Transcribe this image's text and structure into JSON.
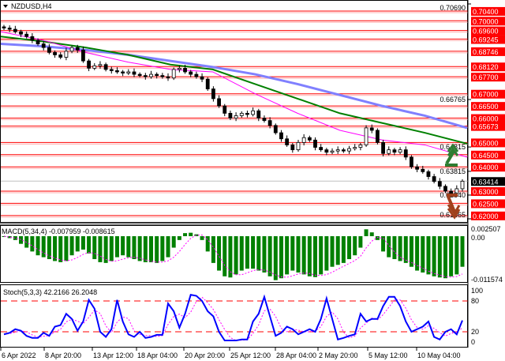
{
  "chart_data": [
    {
      "type": "candlestick",
      "title": "NZDUSD,H4",
      "symbol": "NZDUSD",
      "timeframe": "H4",
      "ylim": [
        0.61865,
        0.7069
      ],
      "axis_ticks": [
        "0.70690",
        "0.66765",
        "0.64815",
        "0.63815",
        "0.62840",
        "0.61865"
      ],
      "level_labels": [
        "0.70400",
        "0.70000",
        "0.69600",
        "0.69245",
        "0.68746",
        "0.68120",
        "0.67700",
        "0.67000",
        "0.66500",
        "0.66000",
        "0.65673",
        "0.65000",
        "0.64500",
        "0.64000",
        "0.63000",
        "0.62500",
        "0.62000"
      ],
      "current_price": "0.63414",
      "closes": [
        0.697,
        0.6965,
        0.6955,
        0.6945,
        0.6935,
        0.692,
        0.6905,
        0.689,
        0.687,
        0.686,
        0.685,
        0.6875,
        0.689,
        0.688,
        0.6835,
        0.6805,
        0.6815,
        0.682,
        0.68,
        0.6795,
        0.679,
        0.6785,
        0.679,
        0.678,
        0.6775,
        0.677,
        0.678,
        0.6775,
        0.677,
        0.6765,
        0.68,
        0.6805,
        0.679,
        0.678,
        0.677,
        0.676,
        0.672,
        0.668,
        0.665,
        0.662,
        0.66,
        0.661,
        0.662,
        0.6615,
        0.663,
        0.66,
        0.659,
        0.657,
        0.654,
        0.6515,
        0.649,
        0.647,
        0.65,
        0.652,
        0.651,
        0.648,
        0.647,
        0.646,
        0.6465,
        0.647,
        0.6465,
        0.6475,
        0.648,
        0.649,
        0.656,
        0.655,
        0.65,
        0.6455,
        0.647,
        0.646,
        0.647,
        0.644,
        0.64,
        0.639,
        0.638,
        0.636,
        0.634,
        0.632,
        0.63,
        0.629,
        0.631,
        0.6341
      ],
      "moving_averages": [
        {
          "color": "#8080ff",
          "values": [
            0.6905,
            0.6895,
            0.688,
            0.686,
            0.6835,
            0.681,
            0.678,
            0.674,
            0.6695,
            0.665,
            0.661,
            0.656
          ]
        },
        {
          "color": "#008000",
          "values": [
            0.6935,
            0.6915,
            0.689,
            0.686,
            0.682,
            0.68,
            0.674,
            0.668,
            0.662,
            0.658,
            0.654,
            0.6495
          ]
        },
        {
          "color": "#ff00ff",
          "values": [
            0.6955,
            0.692,
            0.687,
            0.683,
            0.68,
            0.679,
            0.67,
            0.662,
            0.655,
            0.651,
            0.649,
            0.644
          ]
        }
      ],
      "colors": {
        "levels": "#ff0000",
        "up_arrow": "#2e7d32",
        "down_arrow": "#a0401c"
      }
    },
    {
      "type": "bar",
      "title": "MACD(5,34,4) -0.007959 -0.008615",
      "ylim": [
        -0.011574,
        0.002507
      ],
      "axis_ticks": [
        "0.002507",
        "0.00",
        "-0.011574"
      ],
      "histogram": [
        0,
        -0.0005,
        -0.001,
        -0.002,
        -0.003,
        -0.004,
        -0.005,
        -0.0055,
        -0.006,
        -0.0065,
        -0.0068,
        -0.0065,
        -0.005,
        -0.004,
        -0.0035,
        -0.0045,
        -0.006,
        -0.0068,
        -0.007,
        -0.0065,
        -0.0055,
        -0.005,
        -0.0055,
        -0.006,
        -0.0065,
        -0.0068,
        -0.0068,
        -0.007,
        -0.0065,
        -0.0055,
        -0.003,
        -0.001,
        0.0008,
        0.0009,
        0.0005,
        -0.001,
        -0.004,
        -0.007,
        -0.009,
        -0.0105,
        -0.0108,
        -0.01,
        -0.009,
        -0.0085,
        -0.0085,
        -0.009,
        -0.0095,
        -0.0105,
        -0.0115,
        -0.011,
        -0.01,
        -0.009,
        -0.0095,
        -0.01,
        -0.0105,
        -0.0107,
        -0.01,
        -0.009,
        -0.008,
        -0.0075,
        -0.007,
        -0.006,
        -0.005,
        -0.003,
        0.0018,
        0.001,
        -0.001,
        -0.004,
        -0.0055,
        -0.006,
        -0.0065,
        -0.007,
        -0.008,
        -0.009,
        -0.0095,
        -0.01,
        -0.0105,
        -0.0108,
        -0.011,
        -0.0105,
        -0.01,
        -0.008
      ],
      "colors": {
        "histogram": "#008000",
        "signal": "#ff00ff"
      }
    },
    {
      "type": "line",
      "title": "Stoch(5,3,3) 42.2166 26.2048",
      "ylim": [
        0,
        100
      ],
      "axis_ticks": [
        "100",
        "80",
        "20",
        "0"
      ],
      "levels": [
        80,
        20
      ],
      "main": [
        15,
        18,
        25,
        22,
        12,
        8,
        8,
        18,
        12,
        30,
        33,
        55,
        45,
        22,
        40,
        82,
        65,
        20,
        10,
        25,
        82,
        40,
        15,
        10,
        20,
        8,
        10,
        14,
        14,
        75,
        60,
        28,
        55,
        92,
        90,
        80,
        60,
        50,
        20,
        3,
        3,
        3,
        5,
        5,
        40,
        55,
        88,
        50,
        12,
        18,
        30,
        25,
        15,
        20,
        25,
        20,
        45,
        85,
        45,
        5,
        8,
        12,
        15,
        55,
        40,
        45,
        45,
        70,
        88,
        88,
        70,
        40,
        20,
        25,
        30,
        40,
        10,
        5,
        20,
        25,
        15,
        42.2
      ],
      "colors": {
        "main": "#0000ff",
        "signal": "#ff00ff",
        "levels": "#ff0000"
      }
    }
  ],
  "x_axis_labels": [
    "6 Apr 2022",
    "8 Apr 20:00",
    "13 Apr 12:00",
    "18 Apr 04:00",
    "20 Apr 20:00",
    "25 Apr 12:00",
    "28 Apr 04:00",
    "2 May 20:00",
    "5 May 12:00",
    "10 May 04:00"
  ]
}
